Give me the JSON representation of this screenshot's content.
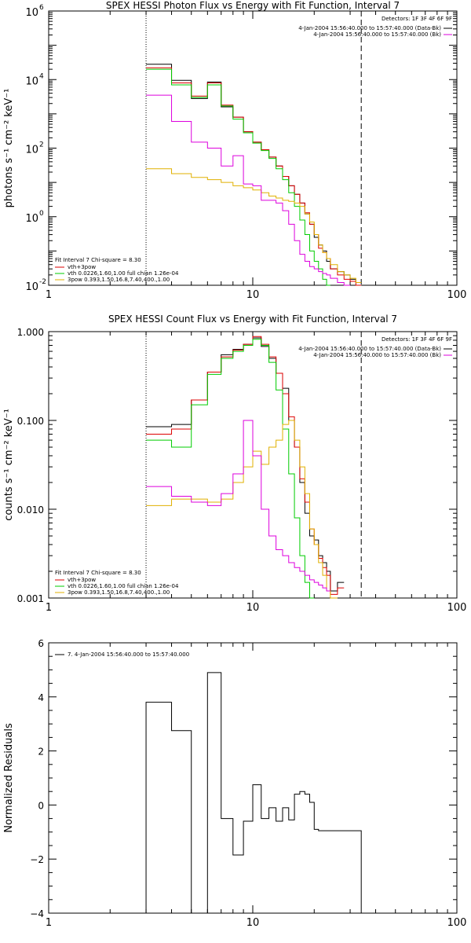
{
  "chart_data": [
    {
      "type": "line",
      "title": "SPEX HESSI Photon Flux vs Energy with Fit Function, Interval 7",
      "ylabel": "photons s⁻¹ cm⁻² keV⁻¹",
      "xlabel": "",
      "xscale": "log",
      "yscale": "log",
      "xlim": [
        1,
        100
      ],
      "ylim": [
        0.01,
        1000000
      ],
      "grid": false,
      "x_ticks": [
        {
          "value": 1,
          "label": "1"
        },
        {
          "value": 10,
          "label": "10"
        },
        {
          "value": 100,
          "label": "100"
        }
      ],
      "y_ticks": [
        {
          "value": 0.01,
          "label": "10",
          "exp": "-2"
        },
        {
          "value": 1,
          "label": "10",
          "exp": "0"
        },
        {
          "value": 100,
          "label": "10",
          "exp": "2"
        },
        {
          "value": 10000,
          "label": "10",
          "exp": "4"
        },
        {
          "value": 1000000,
          "label": "10",
          "exp": "6"
        }
      ],
      "ref_lines": [
        {
          "x": 3,
          "style": "dotted"
        },
        {
          "x": 34,
          "style": "dashed"
        }
      ],
      "legend_right": {
        "title": "Detectors: 1F 3F 4F 6F 9F",
        "entries": [
          {
            "label": "4-Jan-2004 15:56:40.000 to 15:57:40.000 (Data-Bk)",
            "color": "#000000"
          },
          {
            "label": "4-Jan-2004 15:56:40.000 to 15:57:40.000 (Bk)",
            "color": "#dd00dd"
          }
        ]
      },
      "legend_left": {
        "title": "Fit Interval 7   Chi-square = 8.30",
        "entries": [
          {
            "label": "vth+3pow",
            "color": "#dd0000"
          },
          {
            "label": "vth 0.0226,1.60,1.00  full chian 1.26e-04",
            "color": "#00cc00"
          },
          {
            "label": "3pow 0.393,1.50,16.8,7.40,400.,1.00",
            "color": "#e0b000"
          }
        ]
      },
      "edges": [
        3,
        4,
        5,
        6,
        7,
        8,
        9,
        10,
        11,
        12,
        13,
        14,
        15,
        16,
        17,
        18,
        19,
        20,
        21,
        22,
        23,
        24,
        26,
        28,
        30,
        32,
        34
      ],
      "series": [
        {
          "name": "4-Jan-2004 15:56:40.000 to 15:57:40.000 (Data-Bk)",
          "color": "#000000",
          "start_index": 0,
          "values": [
            28000,
            9500,
            2800,
            8500,
            1600,
            800,
            300,
            150,
            90,
            55,
            30,
            15,
            8,
            4.5,
            2.5,
            1.2,
            0.6,
            0.25,
            0.15,
            0.1,
            0.05,
            0.03,
            0.025,
            0.02,
            0.015,
            0.012
          ]
        },
        {
          "name": "vth+3pow",
          "color": "#dd0000",
          "start_index": 0,
          "values": [
            22000,
            8000,
            3300,
            8000,
            1800,
            800,
            300,
            150,
            90,
            55,
            30,
            15,
            8,
            4.5,
            2.5,
            1.3,
            0.6,
            0.3,
            0.12,
            0.09,
            0.06,
            0.03,
            0.02,
            0.015,
            0.013,
            0.01
          ]
        },
        {
          "name": "vth 0.0226,1.60,1.00  full chian 1.26e-04",
          "color": "#00cc00",
          "start_index": 0,
          "values": [
            20000,
            7000,
            3000,
            7000,
            1700,
            700,
            280,
            140,
            85,
            50,
            25,
            12,
            5,
            2,
            0.8,
            0.3,
            0.1,
            0.05,
            0.03,
            0.015,
            0.008
          ]
        },
        {
          "name": "3pow 0.393,1.50,16.8,7.40,400.,1.00",
          "color": "#e0b000",
          "start_index": 0,
          "values": [
            25,
            18,
            14,
            12,
            10,
            8,
            7,
            6,
            5,
            4,
            3.5,
            3,
            2.8,
            2.5,
            2,
            1.2,
            0.7,
            0.3,
            0.15,
            0.09,
            0.06,
            0.04,
            0.025,
            0.02,
            0.016,
            0.012
          ]
        },
        {
          "name": "4-Jan-2004 15:56:40.000 to 15:57:40.000 (Bk)",
          "color": "#dd00dd",
          "start_index": 0,
          "values": [
            3500,
            600,
            150,
            100,
            30,
            60,
            9,
            8,
            3,
            3,
            2.5,
            1.5,
            0.6,
            0.2,
            0.08,
            0.05,
            0.035,
            0.03,
            0.025,
            0.022,
            0.02,
            0.016,
            0.012,
            0.01
          ]
        }
      ]
    },
    {
      "type": "line",
      "title": "SPEX HESSI Count Flux vs Energy with Fit Function, Interval 7",
      "ylabel": "counts s⁻¹ cm⁻² keV⁻¹",
      "xlabel": "",
      "xscale": "log",
      "yscale": "log",
      "xlim": [
        1,
        100
      ],
      "ylim": [
        0.001,
        1.0
      ],
      "grid": false,
      "x_ticks": [
        {
          "value": 1,
          "label": "1"
        },
        {
          "value": 10,
          "label": "10"
        },
        {
          "value": 100,
          "label": "100"
        }
      ],
      "y_ticks": [
        {
          "value": 0.001,
          "label": "0.001"
        },
        {
          "value": 0.01,
          "label": "0.010"
        },
        {
          "value": 0.1,
          "label": "0.100"
        },
        {
          "value": 1.0,
          "label": "1.000"
        }
      ],
      "ref_lines": [
        {
          "x": 3,
          "style": "dotted"
        },
        {
          "x": 34,
          "style": "dashed"
        }
      ],
      "legend_right": {
        "title": "Detectors: 1F 3F 4F 6F 9F",
        "entries": [
          {
            "label": "4-Jan-2004 15:56:40.000 to 15:57:40.000 (Data-Bk)",
            "color": "#000000"
          },
          {
            "label": "4-Jan-2004 15:56:40.000 to 15:57:40.000 (Bk)",
            "color": "#dd00dd"
          }
        ]
      },
      "legend_left": {
        "title": "Fit Interval 7   Chi-square = 8.30",
        "entries": [
          {
            "label": "vth+3pow",
            "color": "#dd0000"
          },
          {
            "label": "vth 0.0226,1.60,1.00  full chian 1.26e-04",
            "color": "#00cc00"
          },
          {
            "label": "3pow 0.393,1.50,16.8,7.40,400.,1.00",
            "color": "#e0b000"
          }
        ]
      },
      "edges": [
        3,
        4,
        5,
        6,
        7,
        8,
        9,
        10,
        11,
        12,
        13,
        14,
        15,
        16,
        17,
        18,
        19,
        20,
        21,
        22,
        23,
        24,
        26,
        28,
        30,
        32,
        34,
        36
      ],
      "series": [
        {
          "name": "4-Jan-2004 15:56:40.000 to 15:57:40.000 (Data-Bk)",
          "color": "#000000",
          "start_index": 0,
          "values": [
            0.085,
            0.09,
            0.17,
            0.35,
            0.55,
            0.63,
            0.72,
            0.85,
            0.68,
            0.5,
            0.34,
            0.23,
            0.1,
            0.05,
            0.02,
            0.009,
            0.005,
            0.0045,
            0.003,
            0.0025,
            0.002,
            0.0012,
            0.0015
          ]
        },
        {
          "name": "vth+3pow",
          "color": "#dd0000",
          "start_index": 0,
          "values": [
            0.07,
            0.08,
            0.17,
            0.35,
            0.52,
            0.62,
            0.72,
            0.88,
            0.72,
            0.52,
            0.34,
            0.2,
            0.11,
            0.05,
            0.022,
            0.012,
            0.006,
            0.004,
            0.0028,
            0.0022,
            0.0018,
            0.0011,
            0.0013
          ]
        },
        {
          "name": "vth 0.0226,1.60,1.00  full chian 1.26e-04",
          "color": "#00cc00",
          "start_index": 0,
          "values": [
            0.06,
            0.05,
            0.15,
            0.33,
            0.5,
            0.6,
            0.7,
            0.82,
            0.7,
            0.45,
            0.22,
            0.08,
            0.025,
            0.008,
            0.003,
            0.0015,
            0.001
          ]
        },
        {
          "name": "3pow 0.393,1.50,16.8,7.40,400.,1.00",
          "color": "#e0b000",
          "start_index": 0,
          "values": [
            0.011,
            0.013,
            0.013,
            0.012,
            0.013,
            0.02,
            0.03,
            0.045,
            0.032,
            0.05,
            0.06,
            0.09,
            0.1,
            0.06,
            0.03,
            0.015,
            0.006,
            0.004,
            0.0025,
            0.0018,
            0.0012,
            0.001
          ]
        },
        {
          "name": "4-Jan-2004 15:56:40.000 to 15:57:40.000 (Bk)",
          "color": "#dd00dd",
          "start_index": 0,
          "values": [
            0.018,
            0.014,
            0.012,
            0.011,
            0.015,
            0.025,
            0.1,
            0.04,
            0.01,
            0.005,
            0.0035,
            0.003,
            0.0025,
            0.0022,
            0.002,
            0.0018,
            0.0016,
            0.0015,
            0.0014,
            0.0013,
            0.0012
          ]
        }
      ]
    },
    {
      "type": "line",
      "title": "",
      "ylabel": "Normalized Residuals",
      "xlabel": "",
      "xscale": "log",
      "yscale": "linear",
      "xlim": [
        1,
        100
      ],
      "ylim": [
        -4,
        6
      ],
      "grid": false,
      "x_ticks": [
        {
          "value": 1,
          "label": "1"
        },
        {
          "value": 10,
          "label": "10"
        },
        {
          "value": 100,
          "label": "100"
        }
      ],
      "y_ticks": [
        {
          "value": -4,
          "label": "−4"
        },
        {
          "value": -2,
          "label": "−2"
        },
        {
          "value": 0,
          "label": "0"
        },
        {
          "value": 2,
          "label": "2"
        },
        {
          "value": 4,
          "label": "4"
        },
        {
          "value": 6,
          "label": "6"
        }
      ],
      "legend_left": {
        "title": "",
        "entries": [
          {
            "label": "7.  4-Jan-2004 15:56:40.000 to 15:57:40.000",
            "color": "#000000"
          }
        ]
      },
      "edges": [
        3,
        4,
        5,
        6,
        7,
        7.5,
        8,
        9,
        10,
        11,
        12,
        13,
        14,
        15,
        16,
        17,
        18,
        19,
        20,
        21,
        22,
        23,
        24,
        26,
        28,
        30,
        32,
        34
      ],
      "series": [
        {
          "name": "7.  4-Jan-2004 15:56:40.000 to 15:57:40.000",
          "color": "#000000",
          "start_index": 0,
          "values": [
            3.8,
            2.75,
            -4.1,
            4.9,
            -0.5,
            -0.5,
            -1.85,
            -0.6,
            0.75,
            -0.5,
            -0.1,
            -0.6,
            -0.1,
            -0.55,
            0.4,
            0.5,
            0.4,
            0.1,
            -0.9,
            -0.95,
            -0.95,
            -0.95,
            -0.95,
            -0.95,
            -0.95,
            -0.95,
            -0.95
          ]
        }
      ]
    }
  ]
}
